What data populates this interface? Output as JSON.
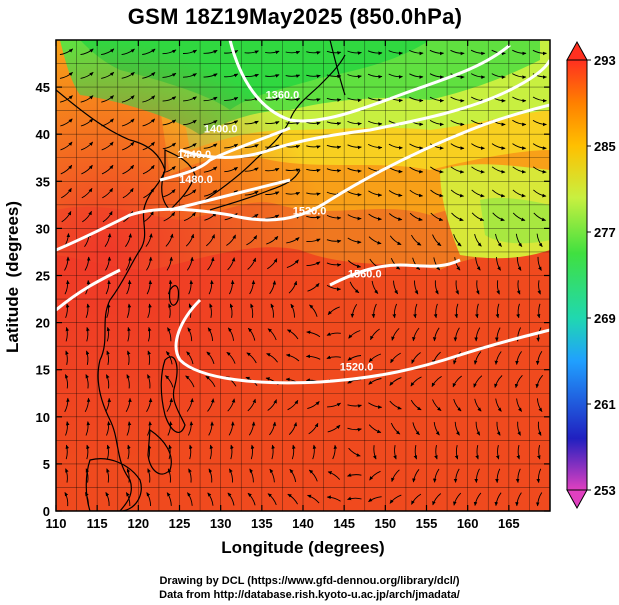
{
  "title": "GSM 18Z19May2025 (850.0hPa)",
  "xlabel": "Longitude (degrees)",
  "ylabel": "Latitude  (degrees)",
  "credits": [
    "Drawing by DCL (https://www.gfd-dennou.org/library/dcl/)",
    "Data from http://database.rish.kyoto-u.ac.jp/arch/jmadata/"
  ],
  "chart_data": {
    "type": "heatmap",
    "description_of_fields": "shading: temperature (K); white contours: geopotential height (m); black arrows: wind streamlines",
    "xlim": [
      110,
      170
    ],
    "ylim": [
      0,
      50
    ],
    "x_ticks": [
      110,
      115,
      120,
      125,
      130,
      135,
      140,
      145,
      150,
      155,
      160,
      165
    ],
    "y_ticks": [
      0,
      5,
      10,
      15,
      20,
      25,
      30,
      35,
      40,
      45
    ],
    "grid": true,
    "colorbar": {
      "min": 253,
      "max": 293,
      "ticks": [
        293,
        285,
        277,
        269,
        261,
        253
      ],
      "colors": [
        "#e040c0",
        "#2020c0",
        "#20a0ff",
        "#20d8b0",
        "#40e040",
        "#c8f040",
        "#ffc000",
        "#ff8000",
        "#ff3020"
      ]
    },
    "contour_labels": [
      {
        "text": "1360.0",
        "lon": 137.5,
        "lat": 43.8
      },
      {
        "text": "1400.0",
        "lon": 130.0,
        "lat": 40.2
      },
      {
        "text": "1440.0",
        "lon": 126.8,
        "lat": 37.5
      },
      {
        "text": "1480.0",
        "lon": 127.0,
        "lat": 34.8
      },
      {
        "text": "1520.0",
        "lon": 140.8,
        "lat": 31.5
      },
      {
        "text": "1560.0",
        "lon": 147.5,
        "lat": 24.8
      },
      {
        "text": "1520.0",
        "lon": 146.5,
        "lat": 14.9
      }
    ]
  }
}
